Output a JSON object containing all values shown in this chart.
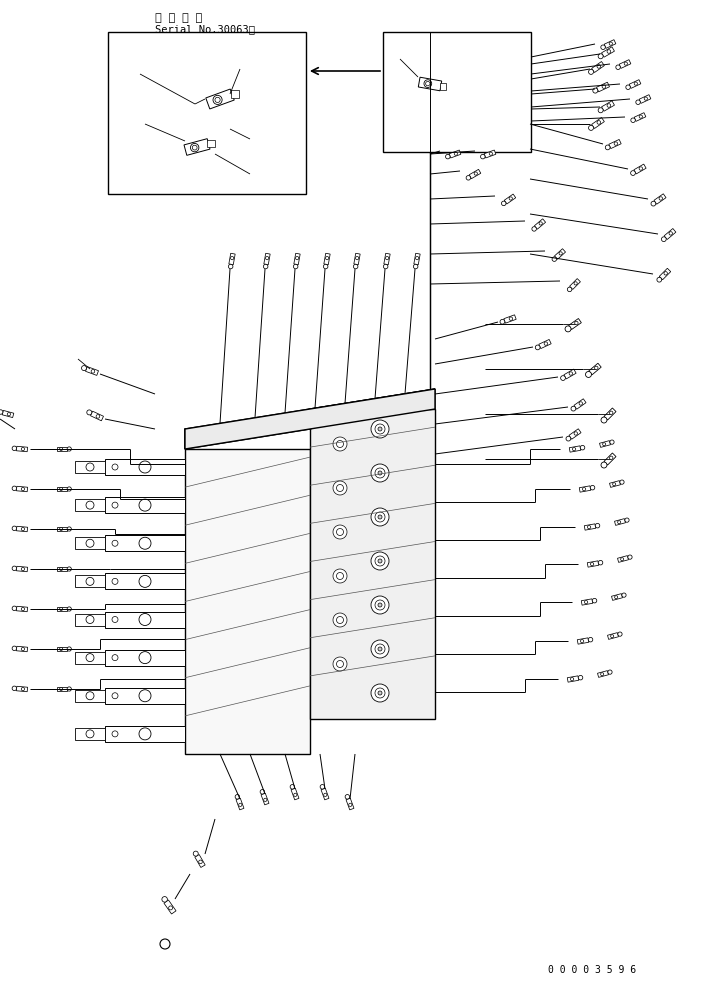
{
  "title_line1": "適 用 号 機",
  "title_line2": "Serial No.30063～",
  "doc_number": "0 0 0 0 3 5 9 6",
  "bg_color": "#ffffff",
  "line_color": "#000000",
  "fig_width": 7.06,
  "fig_height": 9.87,
  "dpi": 100
}
